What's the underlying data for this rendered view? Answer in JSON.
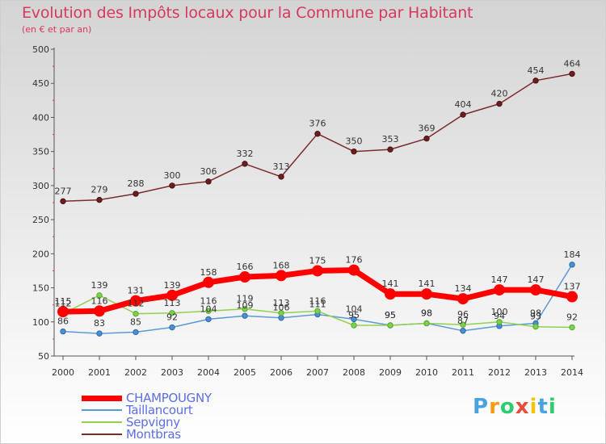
{
  "title": "Evolution des Impôts locaux pour la Commune par Habitant",
  "subtitle": "(en € et par an)",
  "brand": {
    "letters": [
      "P",
      "r",
      "o",
      "x",
      "i",
      "t",
      "i"
    ],
    "colors": [
      "#4aa3df",
      "#f39c12",
      "#2ecc71",
      "#e74c3c",
      "#f1c40f",
      "#4aa3df",
      "#2ecc71"
    ]
  },
  "chart_data": {
    "type": "line",
    "title": "Evolution des Impôts locaux pour la Commune par Habitant",
    "subtitle": "(en € et par an)",
    "x": [
      2000,
      2001,
      2002,
      2003,
      2004,
      2005,
      2006,
      2007,
      2008,
      2009,
      2010,
      2011,
      2012,
      2013,
      2014
    ],
    "ylim": [
      50,
      500
    ],
    "yticks": [
      50,
      100,
      150,
      200,
      250,
      300,
      350,
      400,
      450,
      500
    ],
    "grid": false,
    "legend_position": "bottom-left",
    "series": [
      {
        "name": "CHAMPOUGNY",
        "color": "#ff0000",
        "values": [
          115,
          116,
          131,
          139,
          158,
          166,
          168,
          175,
          176,
          141,
          141,
          134,
          147,
          147,
          137
        ]
      },
      {
        "name": "Taillancourt",
        "color": "#5b9bd5",
        "values": [
          86,
          83,
          85,
          92,
          104,
          109,
          106,
          111,
          104,
          95,
          98,
          87,
          94,
          98,
          184
        ]
      },
      {
        "name": "Sepvigny",
        "color": "#92d050",
        "values": [
          112,
          139,
          112,
          113,
          116,
          119,
          113,
          116,
          95,
          95,
          98,
          96,
          100,
          93,
          92
        ]
      },
      {
        "name": "Montbras",
        "color": "#7b2c2c",
        "values": [
          277,
          279,
          288,
          300,
          306,
          332,
          313,
          376,
          350,
          353,
          369,
          404,
          420,
          454,
          464
        ]
      }
    ]
  }
}
